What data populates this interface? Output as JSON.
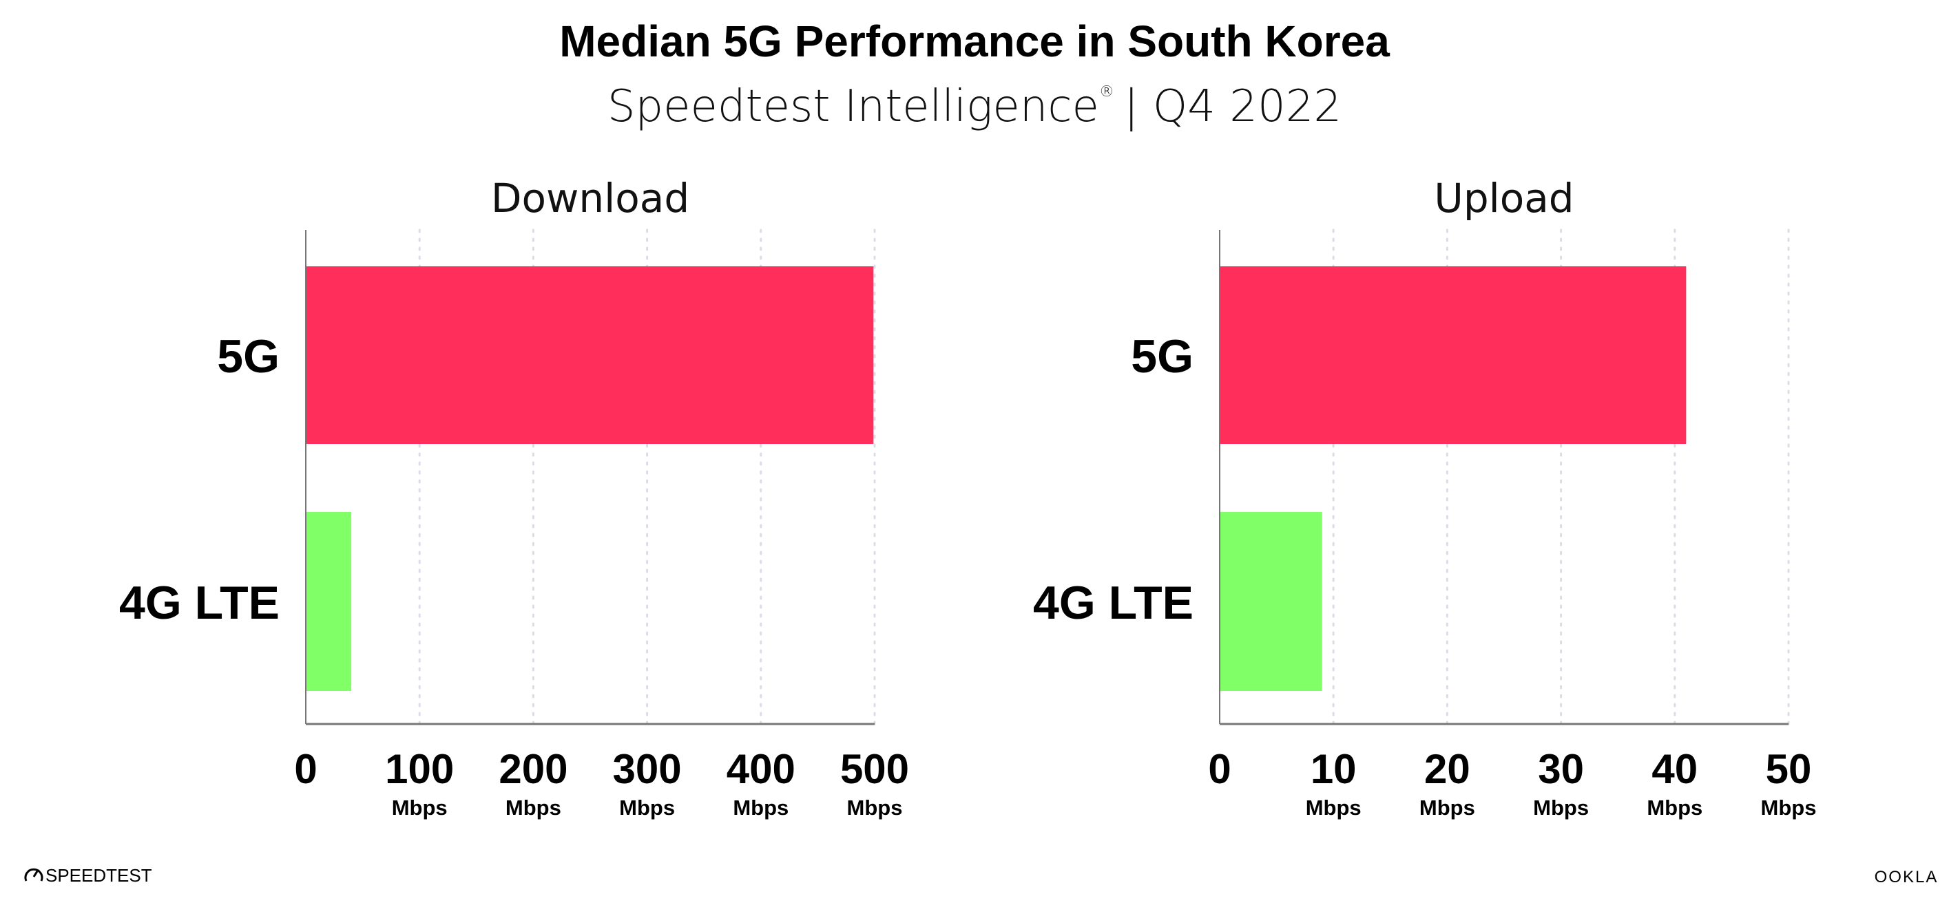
{
  "title": "Median 5G Performance in South Korea",
  "subtitle": "Speedtest Intelligence",
  "subtitle_mark": "®",
  "subtitle_period": "| Q4 2022",
  "footer": {
    "left_logo": "SPEEDTEST",
    "right_logo": "OOKLA"
  },
  "colors": {
    "5G": "#FF2E5B",
    "4G LTE": "#80FF66",
    "grid": "#DCDCE8",
    "axis": "#777777"
  },
  "chart_data": [
    {
      "type": "bar",
      "orientation": "horizontal",
      "title": "Download",
      "categories": [
        "5G",
        "4G LTE"
      ],
      "values": [
        499,
        40
      ],
      "xlim": [
        0,
        500
      ],
      "ticks": [
        0,
        100,
        200,
        300,
        400,
        500
      ],
      "tick_labels": [
        "0",
        "100",
        "200",
        "300",
        "400",
        "500"
      ],
      "tick_units": [
        "",
        "Mbps",
        "Mbps",
        "Mbps",
        "Mbps",
        "Mbps"
      ],
      "grid": true
    },
    {
      "type": "bar",
      "orientation": "horizontal",
      "title": "Upload",
      "categories": [
        "5G",
        "4G LTE"
      ],
      "values": [
        41,
        9
      ],
      "xlim": [
        0,
        50
      ],
      "ticks": [
        0,
        10,
        20,
        30,
        40,
        50
      ],
      "tick_labels": [
        "0",
        "10",
        "20",
        "30",
        "40",
        "50"
      ],
      "tick_units": [
        "",
        "Mbps",
        "Mbps",
        "Mbps",
        "Mbps",
        "Mbps"
      ],
      "grid": true
    }
  ]
}
